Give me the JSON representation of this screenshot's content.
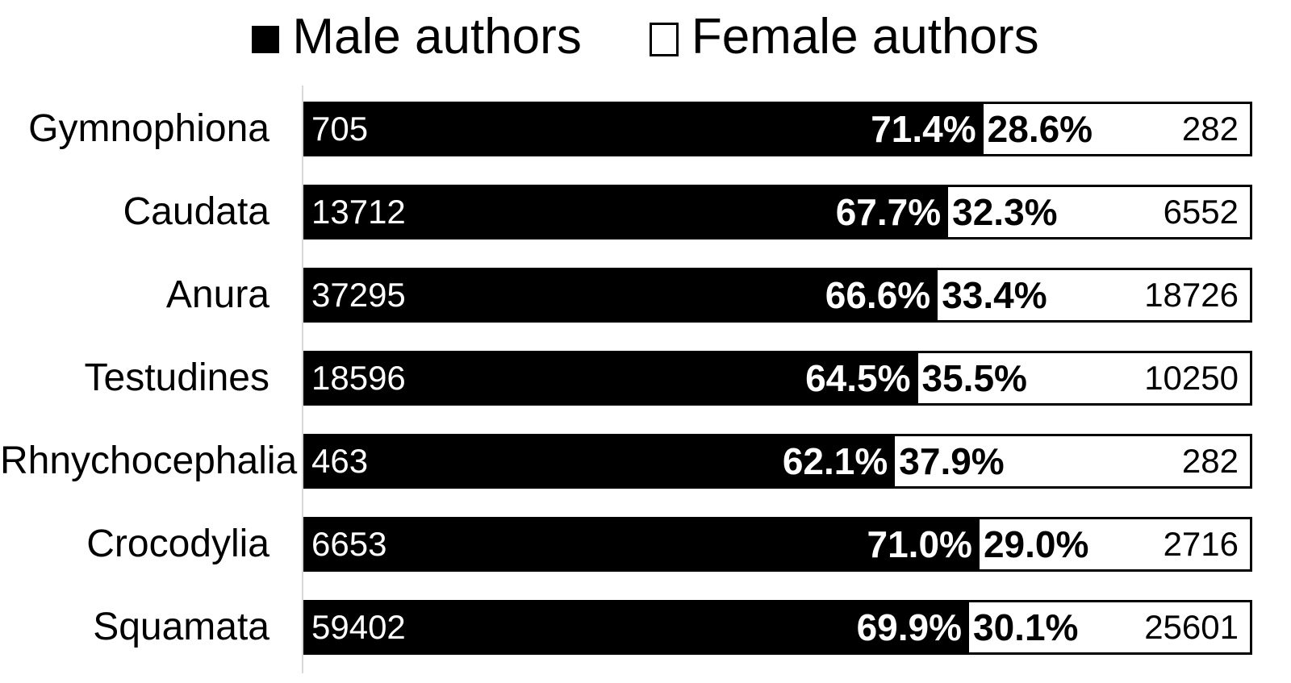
{
  "chart_data": {
    "type": "bar",
    "orientation": "horizontal",
    "stacked": true,
    "percent_total": 100,
    "title": "",
    "xlabel": "",
    "ylabel": "",
    "xlim": [
      0,
      100
    ],
    "grid": false,
    "legend_position": "top",
    "axis_line_color": "#d9d9d9",
    "categories": [
      "Gymnophiona",
      "Caudata",
      "Anura",
      "Testudines",
      "Rhnychocephalia",
      "Crocodylia",
      "Squamata"
    ],
    "series": [
      {
        "name": "Male authors",
        "values": [
          71.4,
          67.7,
          66.6,
          64.5,
          62.1,
          71.0,
          69.9
        ],
        "percent_labels": [
          "71.4%",
          "67.7%",
          "66.6%",
          "64.5%",
          "62.1%",
          "71.0%",
          "69.9%"
        ],
        "counts": [
          705,
          13712,
          37295,
          18596,
          463,
          6653,
          59402
        ],
        "count_labels": [
          "705",
          "13712",
          "37295",
          "18596",
          "463",
          "6653",
          "59402"
        ],
        "fill": "#000000",
        "text_color": "#ffffff"
      },
      {
        "name": "Female authors",
        "values": [
          28.6,
          32.3,
          33.4,
          35.5,
          37.9,
          29.0,
          30.1
        ],
        "percent_labels": [
          "28.6%",
          "32.3%",
          "33.4%",
          "35.5%",
          "37.9%",
          "29.0%",
          "30.1%"
        ],
        "counts": [
          282,
          6552,
          18726,
          10250,
          282,
          2716,
          25601
        ],
        "count_labels": [
          "282",
          "6552",
          "18726",
          "10250",
          "282",
          "2716",
          "25601"
        ],
        "fill": "#ffffff",
        "border_color": "#000000",
        "text_color": "#000000"
      }
    ]
  }
}
